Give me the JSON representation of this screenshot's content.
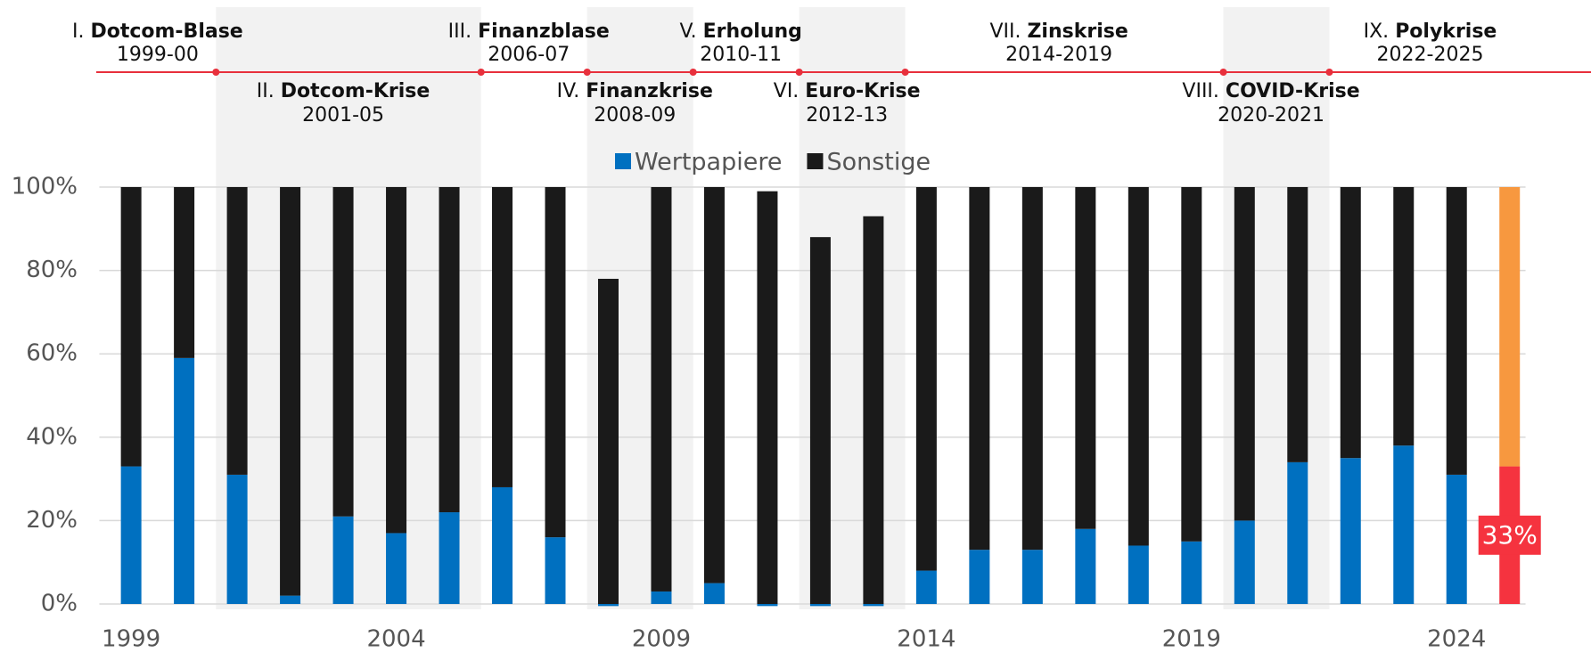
{
  "chart_data": {
    "type": "stacked_bar",
    "x": [
      1999,
      2000,
      2001,
      2002,
      2003,
      2004,
      2005,
      2006,
      2007,
      2008,
      2009,
      2010,
      2011,
      2012,
      2013,
      2014,
      2015,
      2016,
      2017,
      2018,
      2019,
      2020,
      2021,
      2022,
      2023,
      2024,
      2025
    ],
    "xlim": [
      1997.3,
      2026.4
    ],
    "xticks": [
      1999,
      2004,
      2009,
      2014,
      2019,
      2024
    ],
    "ylim": [
      0,
      100
    ],
    "yticks": [
      {
        "value": 0,
        "label": "0%"
      },
      {
        "value": 20,
        "label": "20%"
      },
      {
        "value": 40,
        "label": "40%"
      },
      {
        "value": 60,
        "label": "60%"
      },
      {
        "value": 80,
        "label": "80%"
      },
      {
        "value": 100,
        "label": "100%"
      }
    ],
    "grid": true,
    "highlight_x": 2025,
    "series": [
      {
        "name": "Wertpapiere",
        "color": "#0070c0",
        "highlight_color": "#f5333f",
        "values": [
          33,
          59,
          31,
          2,
          21,
          17,
          22,
          28,
          16,
          -0.5,
          3,
          5,
          -0.5,
          -0.5,
          -0.5,
          8,
          13,
          13,
          18,
          14,
          15,
          20,
          34,
          35,
          38,
          31,
          33
        ],
        "value_labels": [
          null,
          null,
          null,
          null,
          null,
          null,
          null,
          null,
          null,
          null,
          null,
          null,
          null,
          null,
          null,
          null,
          null,
          null,
          null,
          null,
          null,
          null,
          null,
          null,
          null,
          null,
          "33%"
        ]
      },
      {
        "name": "Sonstige",
        "color": "#1a1a1a",
        "highlight_color": "#f7983f",
        "values": [
          67,
          41,
          69,
          98,
          79,
          83,
          78,
          72,
          84,
          78,
          97,
          95,
          99,
          88,
          93,
          92,
          87,
          87,
          82,
          86,
          85,
          80,
          66,
          65,
          62,
          69,
          67
        ]
      }
    ],
    "annotations": [
      {
        "numeral": "I.",
        "name": "Dotcom-Blase",
        "period": "1999-00",
        "years": [
          1999,
          2000
        ],
        "shaded": false
      },
      {
        "numeral": "II.",
        "name": "Dotcom-Krise",
        "period": "2001-05",
        "years": [
          2001,
          2005
        ],
        "shaded": true
      },
      {
        "numeral": "III.",
        "name": "Finanzblase",
        "period": "2006-07",
        "years": [
          2006,
          2007
        ],
        "shaded": false
      },
      {
        "numeral": "IV.",
        "name": "Finanzkrise",
        "period": "2008-09",
        "years": [
          2008,
          2009
        ],
        "shaded": true
      },
      {
        "numeral": "V.",
        "name": "Erholung",
        "period": "2010-11",
        "years": [
          2010,
          2011
        ],
        "shaded": false
      },
      {
        "numeral": "VI.",
        "name": "Euro-Krise",
        "period": "2012-13",
        "years": [
          2012,
          2013
        ],
        "shaded": true
      },
      {
        "numeral": "VII.",
        "name": "Zinskrise",
        "period": "2014-2019",
        "years": [
          2014,
          2019
        ],
        "shaded": false
      },
      {
        "numeral": "VIII.",
        "name": "COVID-Krise",
        "period": "2020-2021",
        "years": [
          2020,
          2021
        ],
        "shaded": true
      },
      {
        "numeral": "IX.",
        "name": "Polykrise",
        "period": "2022-2025",
        "years": [
          2022,
          2025
        ],
        "shaded": false
      }
    ]
  }
}
